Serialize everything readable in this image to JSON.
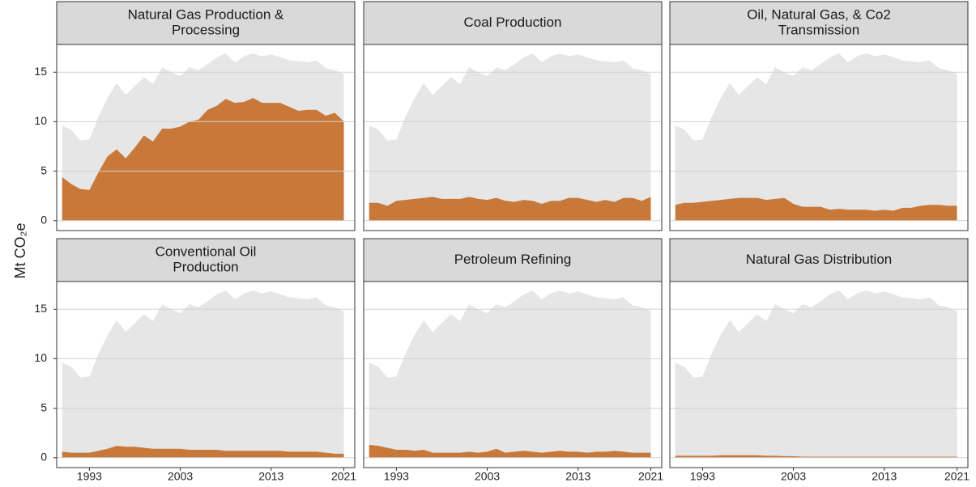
{
  "y_label": "Mt CO₂e",
  "chart_data": [
    {
      "type": "area",
      "title_lines": [
        "Natural Gas Production &",
        "Processing"
      ],
      "x": [
        1990,
        1991,
        1992,
        1993,
        1994,
        1995,
        1996,
        1997,
        1998,
        1999,
        2000,
        2001,
        2002,
        2003,
        2004,
        2005,
        2006,
        2007,
        2008,
        2009,
        2010,
        2011,
        2012,
        2013,
        2014,
        2015,
        2016,
        2017,
        2018,
        2019,
        2020,
        2021
      ],
      "series": [
        {
          "color": "#e6e6e6",
          "values": [
            9.6,
            9.2,
            8.1,
            8.2,
            10.5,
            12.4,
            13.9,
            12.7,
            13.6,
            14.5,
            13.8,
            15.5,
            15.0,
            14.6,
            15.5,
            15.2,
            15.8,
            16.5,
            16.9,
            16.0,
            16.6,
            16.9,
            16.6,
            16.8,
            16.5,
            16.2,
            16.1,
            16.0,
            16.2,
            15.4,
            15.2,
            14.8
          ]
        },
        {
          "color": "#c8793a",
          "values": [
            4.4,
            3.7,
            3.2,
            3.1,
            4.9,
            6.5,
            7.2,
            6.3,
            7.4,
            8.6,
            8.0,
            9.3,
            9.3,
            9.5,
            10.0,
            10.2,
            11.2,
            11.6,
            12.3,
            11.9,
            12.0,
            12.4,
            11.9,
            11.9,
            11.9,
            11.5,
            11.1,
            11.2,
            11.2,
            10.6,
            10.9,
            10.0
          ]
        }
      ],
      "xlim": [
        1989.4,
        2022.2
      ],
      "xticks": [
        1993,
        2003,
        2013,
        2021
      ],
      "ylim": [
        -1,
        17.8
      ],
      "yticks": [
        0,
        5,
        10,
        15
      ],
      "grid": true
    },
    {
      "type": "area",
      "title_lines": [
        "Coal Production"
      ],
      "x": [
        1990,
        1991,
        1992,
        1993,
        1994,
        1995,
        1996,
        1997,
        1998,
        1999,
        2000,
        2001,
        2002,
        2003,
        2004,
        2005,
        2006,
        2007,
        2008,
        2009,
        2010,
        2011,
        2012,
        2013,
        2014,
        2015,
        2016,
        2017,
        2018,
        2019,
        2020,
        2021
      ],
      "series": [
        {
          "color": "#e6e6e6",
          "values": [
            9.6,
            9.2,
            8.1,
            8.2,
            10.5,
            12.4,
            13.9,
            12.7,
            13.6,
            14.5,
            13.8,
            15.5,
            15.0,
            14.6,
            15.5,
            15.2,
            15.8,
            16.5,
            16.9,
            16.0,
            16.6,
            16.9,
            16.6,
            16.8,
            16.5,
            16.2,
            16.1,
            16.0,
            16.2,
            15.4,
            15.2,
            14.8
          ]
        },
        {
          "color": "#c8793a",
          "values": [
            1.8,
            1.8,
            1.5,
            2.0,
            2.1,
            2.2,
            2.3,
            2.4,
            2.2,
            2.2,
            2.2,
            2.4,
            2.2,
            2.1,
            2.3,
            2.0,
            1.9,
            2.1,
            2.0,
            1.7,
            2.0,
            2.0,
            2.3,
            2.3,
            2.1,
            1.9,
            2.1,
            1.9,
            2.3,
            2.3,
            2.0,
            2.4
          ]
        }
      ],
      "xlim": [
        1989.4,
        2022.2
      ],
      "xticks": [
        1993,
        2003,
        2013,
        2021
      ],
      "ylim": [
        -1,
        17.8
      ],
      "yticks": [
        0,
        5,
        10,
        15
      ],
      "grid": true
    },
    {
      "type": "area",
      "title_lines": [
        "Oil, Natural Gas, & Co2",
        "Transmission"
      ],
      "x": [
        1990,
        1991,
        1992,
        1993,
        1994,
        1995,
        1996,
        1997,
        1998,
        1999,
        2000,
        2001,
        2002,
        2003,
        2004,
        2005,
        2006,
        2007,
        2008,
        2009,
        2010,
        2011,
        2012,
        2013,
        2014,
        2015,
        2016,
        2017,
        2018,
        2019,
        2020,
        2021
      ],
      "series": [
        {
          "color": "#e6e6e6",
          "values": [
            9.6,
            9.2,
            8.1,
            8.2,
            10.5,
            12.4,
            13.9,
            12.7,
            13.6,
            14.5,
            13.8,
            15.5,
            15.0,
            14.6,
            15.5,
            15.2,
            15.8,
            16.5,
            16.9,
            16.0,
            16.6,
            16.9,
            16.6,
            16.8,
            16.5,
            16.2,
            16.1,
            16.0,
            16.2,
            15.4,
            15.2,
            14.8
          ]
        },
        {
          "color": "#c8793a",
          "values": [
            1.6,
            1.8,
            1.8,
            1.9,
            2.0,
            2.1,
            2.2,
            2.3,
            2.3,
            2.3,
            2.1,
            2.2,
            2.3,
            1.7,
            1.4,
            1.4,
            1.4,
            1.1,
            1.2,
            1.1,
            1.1,
            1.1,
            1.0,
            1.1,
            1.0,
            1.3,
            1.3,
            1.5,
            1.6,
            1.6,
            1.5,
            1.5
          ]
        }
      ],
      "xlim": [
        1989.4,
        2022.2
      ],
      "xticks": [
        1993,
        2003,
        2013,
        2021
      ],
      "ylim": [
        -1,
        17.8
      ],
      "yticks": [
        0,
        5,
        10,
        15
      ],
      "grid": true
    },
    {
      "type": "area",
      "title_lines": [
        "Conventional Oil",
        "Production"
      ],
      "x": [
        1990,
        1991,
        1992,
        1993,
        1994,
        1995,
        1996,
        1997,
        1998,
        1999,
        2000,
        2001,
        2002,
        2003,
        2004,
        2005,
        2006,
        2007,
        2008,
        2009,
        2010,
        2011,
        2012,
        2013,
        2014,
        2015,
        2016,
        2017,
        2018,
        2019,
        2020,
        2021
      ],
      "series": [
        {
          "color": "#e6e6e6",
          "values": [
            9.6,
            9.2,
            8.1,
            8.2,
            10.5,
            12.4,
            13.9,
            12.7,
            13.6,
            14.5,
            13.8,
            15.5,
            15.0,
            14.6,
            15.5,
            15.2,
            15.8,
            16.5,
            16.9,
            16.0,
            16.6,
            16.9,
            16.6,
            16.8,
            16.5,
            16.2,
            16.1,
            16.0,
            16.2,
            15.4,
            15.2,
            14.8
          ]
        },
        {
          "color": "#c8793a",
          "values": [
            0.6,
            0.5,
            0.5,
            0.5,
            0.7,
            0.9,
            1.2,
            1.1,
            1.1,
            1.0,
            0.9,
            0.9,
            0.9,
            0.9,
            0.8,
            0.8,
            0.8,
            0.8,
            0.7,
            0.7,
            0.7,
            0.7,
            0.7,
            0.7,
            0.7,
            0.6,
            0.6,
            0.6,
            0.6,
            0.5,
            0.4,
            0.4
          ]
        }
      ],
      "xlim": [
        1989.4,
        2022.2
      ],
      "xticks": [
        1993,
        2003,
        2013,
        2021
      ],
      "ylim": [
        -1,
        17.8
      ],
      "yticks": [
        0,
        5,
        10,
        15
      ],
      "grid": true
    },
    {
      "type": "area",
      "title_lines": [
        "Petroleum Refining"
      ],
      "x": [
        1990,
        1991,
        1992,
        1993,
        1994,
        1995,
        1996,
        1997,
        1998,
        1999,
        2000,
        2001,
        2002,
        2003,
        2004,
        2005,
        2006,
        2007,
        2008,
        2009,
        2010,
        2011,
        2012,
        2013,
        2014,
        2015,
        2016,
        2017,
        2018,
        2019,
        2020,
        2021
      ],
      "series": [
        {
          "color": "#e6e6e6",
          "values": [
            9.6,
            9.2,
            8.1,
            8.2,
            10.5,
            12.4,
            13.9,
            12.7,
            13.6,
            14.5,
            13.8,
            15.5,
            15.0,
            14.6,
            15.5,
            15.2,
            15.8,
            16.5,
            16.9,
            16.0,
            16.6,
            16.9,
            16.6,
            16.8,
            16.5,
            16.2,
            16.1,
            16.0,
            16.2,
            15.4,
            15.2,
            14.8
          ]
        },
        {
          "color": "#c8793a",
          "values": [
            1.3,
            1.2,
            1.0,
            0.8,
            0.8,
            0.7,
            0.8,
            0.5,
            0.5,
            0.5,
            0.5,
            0.6,
            0.5,
            0.6,
            0.9,
            0.5,
            0.6,
            0.7,
            0.6,
            0.5,
            0.6,
            0.7,
            0.6,
            0.6,
            0.5,
            0.6,
            0.6,
            0.7,
            0.6,
            0.5,
            0.5,
            0.5
          ]
        }
      ],
      "xlim": [
        1989.4,
        2022.2
      ],
      "xticks": [
        1993,
        2003,
        2013,
        2021
      ],
      "ylim": [
        -1,
        17.8
      ],
      "yticks": [
        0,
        5,
        10,
        15
      ],
      "grid": true
    },
    {
      "type": "area",
      "title_lines": [
        "Natural Gas Distribution"
      ],
      "x": [
        1990,
        1991,
        1992,
        1993,
        1994,
        1995,
        1996,
        1997,
        1998,
        1999,
        2000,
        2001,
        2002,
        2003,
        2004,
        2005,
        2006,
        2007,
        2008,
        2009,
        2010,
        2011,
        2012,
        2013,
        2014,
        2015,
        2016,
        2017,
        2018,
        2019,
        2020,
        2021
      ],
      "series": [
        {
          "color": "#e6e6e6",
          "values": [
            9.6,
            9.2,
            8.1,
            8.2,
            10.5,
            12.4,
            13.9,
            12.7,
            13.6,
            14.5,
            13.8,
            15.5,
            15.0,
            14.6,
            15.5,
            15.2,
            15.8,
            16.5,
            16.9,
            16.0,
            16.6,
            16.9,
            16.6,
            16.8,
            16.5,
            16.2,
            16.1,
            16.0,
            16.2,
            15.4,
            15.2,
            14.8
          ]
        },
        {
          "color": "#c8793a",
          "values": [
            0.2,
            0.2,
            0.2,
            0.2,
            0.2,
            0.25,
            0.25,
            0.25,
            0.25,
            0.25,
            0.2,
            0.2,
            0.15,
            0.15,
            0.1,
            0.1,
            0.1,
            0.1,
            0.1,
            0.1,
            0.1,
            0.1,
            0.1,
            0.1,
            0.1,
            0.1,
            0.1,
            0.1,
            0.1,
            0.1,
            0.1,
            0.1
          ]
        }
      ],
      "xlim": [
        1989.4,
        2022.2
      ],
      "xticks": [
        1993,
        2003,
        2013,
        2021
      ],
      "ylim": [
        -1,
        17.8
      ],
      "yticks": [
        0,
        5,
        10,
        15
      ],
      "grid": true
    }
  ]
}
